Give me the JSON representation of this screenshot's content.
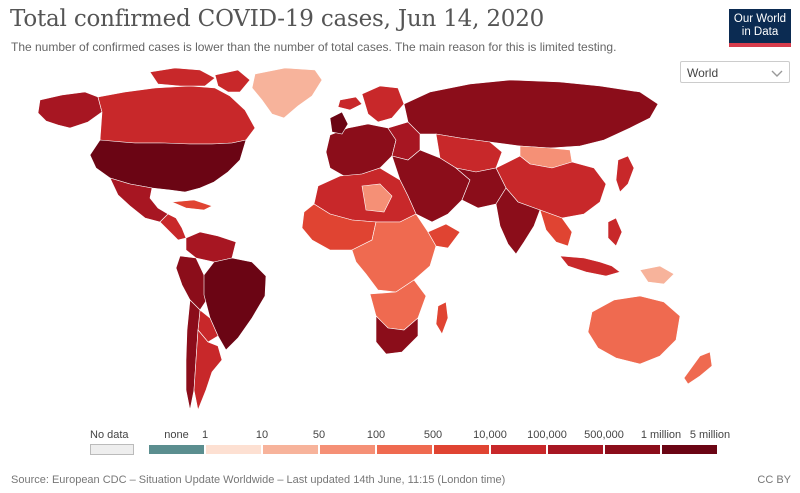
{
  "header": {
    "title": "Total confirmed COVID-19 cases, Jun 14, 2020",
    "subtitle": "The number of confirmed cases is lower than the number of total cases. The main reason for this is limited testing.",
    "logo_line1": "Our World",
    "logo_line2": "in Data"
  },
  "controls": {
    "entity_selector": "World",
    "chevron_icon": "chevron-down-icon"
  },
  "legend": {
    "no_data_label": "No data",
    "no_data_color": "#eeeeee",
    "bins": [
      {
        "color": "#5b8e8f"
      },
      {
        "color": "#fde0d2"
      },
      {
        "color": "#f7b39b"
      },
      {
        "color": "#f59076"
      },
      {
        "color": "#ef6a50"
      },
      {
        "color": "#e04432"
      },
      {
        "color": "#c8282a"
      },
      {
        "color": "#a71622"
      },
      {
        "color": "#8b0d1a"
      },
      {
        "color": "#6b0514"
      }
    ],
    "labels": [
      "none",
      "1",
      "10",
      "50",
      "100",
      "500",
      "10,000",
      "100,000",
      "500,000",
      "1 million",
      "5 million"
    ]
  },
  "map": {
    "colors": {
      "ocean": "#ffffff",
      "top": "#6b0514",
      "very_high": "#8b0d1a",
      "high": "#a71622",
      "mid_high": "#c8282a",
      "mid": "#e04432",
      "low_mid": "#ef6a50",
      "low": "#f59076",
      "very_low": "#f7b39b"
    }
  },
  "footer": {
    "source": "Source: European CDC – Situation Update Worldwide – Last updated 14th June, 11:15 (London time)",
    "license": "CC BY"
  }
}
